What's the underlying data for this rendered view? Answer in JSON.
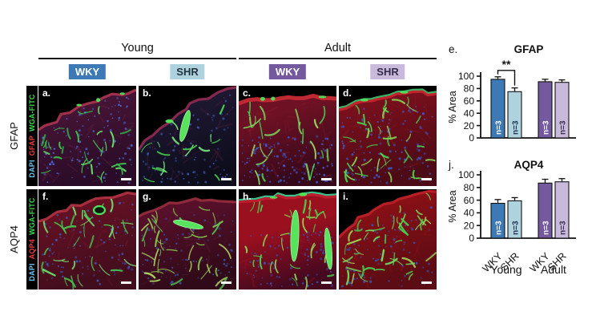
{
  "figure": {
    "groups": [
      {
        "label": "Young"
      },
      {
        "label": "Adult"
      }
    ],
    "chips": [
      {
        "label": "WKY",
        "bg": "#3d79b4",
        "fg": "#ffffff"
      },
      {
        "label": "SHR",
        "bg": "#aed3de",
        "fg": "#22333e"
      },
      {
        "label": "WKY",
        "bg": "#74599f",
        "fg": "#ffffff"
      },
      {
        "label": "SHR",
        "bg": "#c9badb",
        "fg": "#342b4a"
      }
    ],
    "rows": [
      {
        "label": "GFAP",
        "channels": [
          {
            "name": "DAPI",
            "color": "#6ec6f2"
          },
          {
            "name": "GFAP",
            "color": "#f23b3b"
          },
          {
            "name": "WGA-FITC",
            "color": "#3fd84a"
          }
        ],
        "panels": [
          {
            "letter": "a.",
            "scale_bar": true,
            "appearance": {
              "edge": [
                55,
                62,
                16,
                5
              ],
              "base": "#2a0c28",
              "mid": "#4c1638",
              "stop": 0.12,
              "rim": "#a8334e",
              "blobs": 3,
              "vessels": 30,
              "vlen": 13,
              "vcolors": [
                "#3fd04c",
                "#63e368",
                "#2fb84a"
              ],
              "vbias": 0.15,
              "nuclei": 110,
              "ncolor": "#4a6ad8",
              "nbias": 0,
              "wisp": "#6e2246"
            }
          },
          {
            "letter": "b.",
            "scale_bar": true,
            "appearance": {
              "edge": [
                80,
                52,
                20,
                2
              ],
              "base": "#0d0d1c",
              "mid": "#231a36",
              "stop": 0.1,
              "rim": "#8c2a50",
              "blobs": 2,
              "vessels": 16,
              "vlen": 12,
              "vcolors": [
                "#46d852",
                "#77e87c"
              ],
              "vbias": 0.1,
              "bigs": [
                [
                  58,
                  50,
                  4.5,
                  20,
                  14
                ]
              ],
              "nuclei": 85,
              "ncolor": "#3a55a8",
              "nbias": 0,
              "wisp": "#5c2040"
            }
          },
          {
            "letter": "c.",
            "scale_bar": true,
            "appearance": {
              "edge": [
                22,
                61,
                8,
                16
              ],
              "base": "#35091a",
              "mid": "#6e1124",
              "stop": 0.3,
              "rim": "#c62b35",
              "rimw": 5,
              "blobs": 3,
              "vessels": 24,
              "vlen": 16,
              "vcolors": [
                "#44d050",
                "#7ce060",
                "#9ad85a"
              ],
              "vbias": 0.65,
              "nuclei": 135,
              "ncolor": "#4157cc",
              "nbias": 0.4,
              "wisp": "#8c1b2c"
            }
          },
          {
            "letter": "d.",
            "scale_bar": true,
            "appearance": {
              "edge": [
                30,
                61,
                6,
                10
              ],
              "base": "#4c0b16",
              "mid": "#7a101c",
              "stop": 0.18,
              "rim": "#c8252e",
              "glow": "#3fc870",
              "blobs": 2,
              "vessels": 40,
              "vlen": 11,
              "vcolors": [
                "#46d050",
                "#86dc58"
              ],
              "vbias": 0.2,
              "nuclei": 120,
              "ncolor": "#3d56c8",
              "nbias": 0.05,
              "wisp": "#8c1b22"
            }
          }
        ]
      },
      {
        "label": "AQP4",
        "channels": [
          {
            "name": "DAPI",
            "color": "#6ec6f2"
          },
          {
            "name": "AQP4",
            "color": "#f23b3b"
          },
          {
            "name": "WGA-FITC",
            "color": "#3fd84a"
          }
        ],
        "panels": [
          {
            "letter": "f.",
            "scale_bar": true,
            "appearance": {
              "edge": [
                40,
                66,
                8,
                6
              ],
              "base": "#420d1d",
              "mid": "#681224",
              "stop": 0.15,
              "rim": "#b03040",
              "vessels": 34,
              "vlen": 13,
              "vcolors": [
                "#42cf50",
                "#74e070"
              ],
              "vbias": 0.15,
              "ring": [
                76,
                26,
                7,
                5
              ],
              "nuclei": 100,
              "ncolor": "#4056c0",
              "nbias": 0,
              "wisp": "#7c1c30"
            }
          },
          {
            "letter": "g.",
            "scale_bar": true,
            "appearance": {
              "edge": [
                34,
                58,
                5,
                16
              ],
              "base": "#300a18",
              "mid": "#58102a",
              "stop": 0.2,
              "rim": "#942c3c",
              "vessels": 40,
              "vlen": 15,
              "vcolors": [
                "#86c850",
                "#52c455",
                "#a8d060"
              ],
              "vbias": 0.1,
              "bigs": [
                [
                  62,
                  44,
                  19,
                  4,
                  12
                ]
              ],
              "nuclei": 90,
              "ncolor": "#3a50a0",
              "nbias": 0.1,
              "wisp": "#642038"
            }
          },
          {
            "letter": "h.",
            "scale_bar": true,
            "appearance": {
              "edge": [
                16,
                61,
                5,
                9
              ],
              "base": "#45091f",
              "mid": "#9a101f",
              "stop": 0.45,
              "rim": "#c22030",
              "glow": "#3ed89a",
              "blobs": 3,
              "vessels": 32,
              "vlen": 12,
              "vcolors": [
                "#49d34f",
                "#90d455"
              ],
              "vbias": 0.55,
              "bigs": [
                [
                  70,
                  58,
                  5,
                  32,
                  2
                ],
                [
                  112,
                  74,
                  4,
                  26,
                  -5
                ]
              ],
              "nuclei": 95,
              "ncolor": "#3c50b8",
              "nbias": 0.35,
              "wisp": "#a01420"
            }
          },
          {
            "letter": "i.",
            "scale_bar": true,
            "appearance": {
              "edge": [
                60,
                50,
                8,
                3
              ],
              "base": "#5c0c14",
              "mid": "#8c1016",
              "stop": 0.2,
              "rim": "#c02028",
              "vessels": 46,
              "vlen": 13,
              "vcolors": [
                "#48d04e",
                "#9cd455",
                "#70dc60"
              ],
              "vbias": 0.2,
              "nuclei": 100,
              "ncolor": "#3a50b0",
              "nbias": 0.1,
              "wisp": "#99151c"
            }
          }
        ]
      }
    ]
  },
  "chart_data": [
    {
      "id": "e",
      "letter": "e.",
      "type": "bar",
      "title": "GFAP",
      "xlabel": "",
      "ylabel": "% Area",
      "ylim": [
        0,
        100
      ],
      "yticks": [
        0,
        20,
        40,
        60,
        80,
        100
      ],
      "categories": [
        "WKY",
        "SHR",
        "WKY",
        "SHR"
      ],
      "group_labels": [
        "Young",
        "Adult"
      ],
      "show_x_labels": false,
      "values": [
        95,
        75,
        91,
        90
      ],
      "errors": [
        4,
        6,
        4,
        4
      ],
      "bar_colors": [
        "#3d79b4",
        "#aed3de",
        "#74599f",
        "#c9badb"
      ],
      "bar_labels": [
        "n=3",
        "n=3",
        "n=3",
        "n=3"
      ],
      "bar_label_colors": [
        "#ffffff",
        "#1c3253",
        "#ffffff",
        "#3a2d52"
      ],
      "significance": [
        {
          "from": 0,
          "to": 1,
          "label": "**"
        }
      ]
    },
    {
      "id": "j",
      "letter": "j.",
      "type": "bar",
      "title": "AQP4",
      "xlabel": "",
      "ylabel": "% Area",
      "ylim": [
        0,
        100
      ],
      "yticks": [
        0,
        20,
        40,
        60,
        80,
        100
      ],
      "categories": [
        "WKY",
        "SHR",
        "WKY",
        "SHR"
      ],
      "group_labels": [
        "Young",
        "Adult"
      ],
      "show_x_labels": true,
      "values": [
        55,
        59,
        87,
        89
      ],
      "errors": [
        6,
        5,
        6,
        5
      ],
      "bar_colors": [
        "#3d79b4",
        "#aed3de",
        "#74599f",
        "#c9badb"
      ],
      "bar_labels": [
        "n=3",
        "n=3",
        "n=3",
        "n=3"
      ],
      "bar_label_colors": [
        "#ffffff",
        "#1c3253",
        "#ffffff",
        "#3a2d52"
      ],
      "significance": []
    }
  ]
}
